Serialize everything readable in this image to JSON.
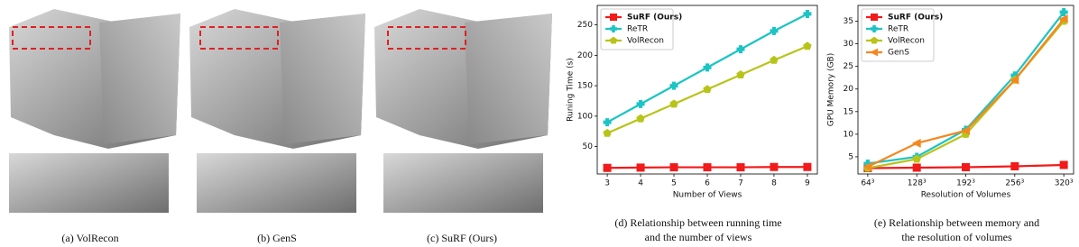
{
  "panels": [
    {
      "caption": "(a) VolRecon"
    },
    {
      "caption": "(b) GenS"
    },
    {
      "caption": "(c) SuRF (Ours)"
    }
  ],
  "chart_data": [
    {
      "type": "line",
      "caption": [
        "(d) Relationship between running time",
        "and the number of views"
      ],
      "x_label": "Number of Views",
      "y_label": "Runing Time (s)",
      "x": [
        3,
        4,
        5,
        6,
        7,
        8,
        9
      ],
      "xlim": [
        2.7,
        9.3
      ],
      "xticks": [
        3,
        4,
        5,
        6,
        7,
        8,
        9
      ],
      "ylim": [
        5,
        282
      ],
      "yticks": [
        50,
        100,
        150,
        200,
        250
      ],
      "legend": "upper left",
      "series": [
        {
          "name": "SuRF (Ours)",
          "color": "#f21a1a",
          "marker": "square",
          "bold": true,
          "values": [
            15,
            15.5,
            16,
            16,
            16,
            16.5,
            16.5
          ]
        },
        {
          "name": "ReTR",
          "color": "#1cc4c4",
          "marker": "plus",
          "values": [
            90,
            120,
            150,
            180,
            210,
            240,
            268
          ]
        },
        {
          "name": "VolRecon",
          "color": "#b8c41a",
          "marker": "pentagon",
          "values": [
            72,
            96,
            120,
            144,
            168,
            192,
            215
          ]
        }
      ]
    },
    {
      "type": "line",
      "caption": [
        "(e) Relationship between memory and",
        "the resolution of volumes"
      ],
      "x_label": "Resolution of Volumes",
      "y_label": "GPU Memory (GB)",
      "categories": [
        "64³",
        "128³",
        "192³",
        "256³",
        "320³"
      ],
      "ylim": [
        1.2,
        38.5
      ],
      "yticks": [
        5,
        10,
        15,
        20,
        25,
        30,
        35
      ],
      "legend": "upper left",
      "series": [
        {
          "name": "SuRF (Ours)",
          "color": "#f21a1a",
          "marker": "square",
          "bold": true,
          "values": [
            2.5,
            2.6,
            2.7,
            2.9,
            3.2
          ]
        },
        {
          "name": "ReTR",
          "color": "#1cc4c4",
          "marker": "plus",
          "values": [
            3.5,
            5,
            11,
            23,
            37
          ]
        },
        {
          "name": "VolRecon",
          "color": "#b8c41a",
          "marker": "pentagon",
          "values": [
            2.5,
            4.5,
            10,
            22,
            35
          ]
        },
        {
          "name": "GenS",
          "color": "#f5871f",
          "marker": "triangle-left",
          "values": [
            2.8,
            8,
            10.8,
            22,
            35.5
          ]
        }
      ]
    }
  ]
}
